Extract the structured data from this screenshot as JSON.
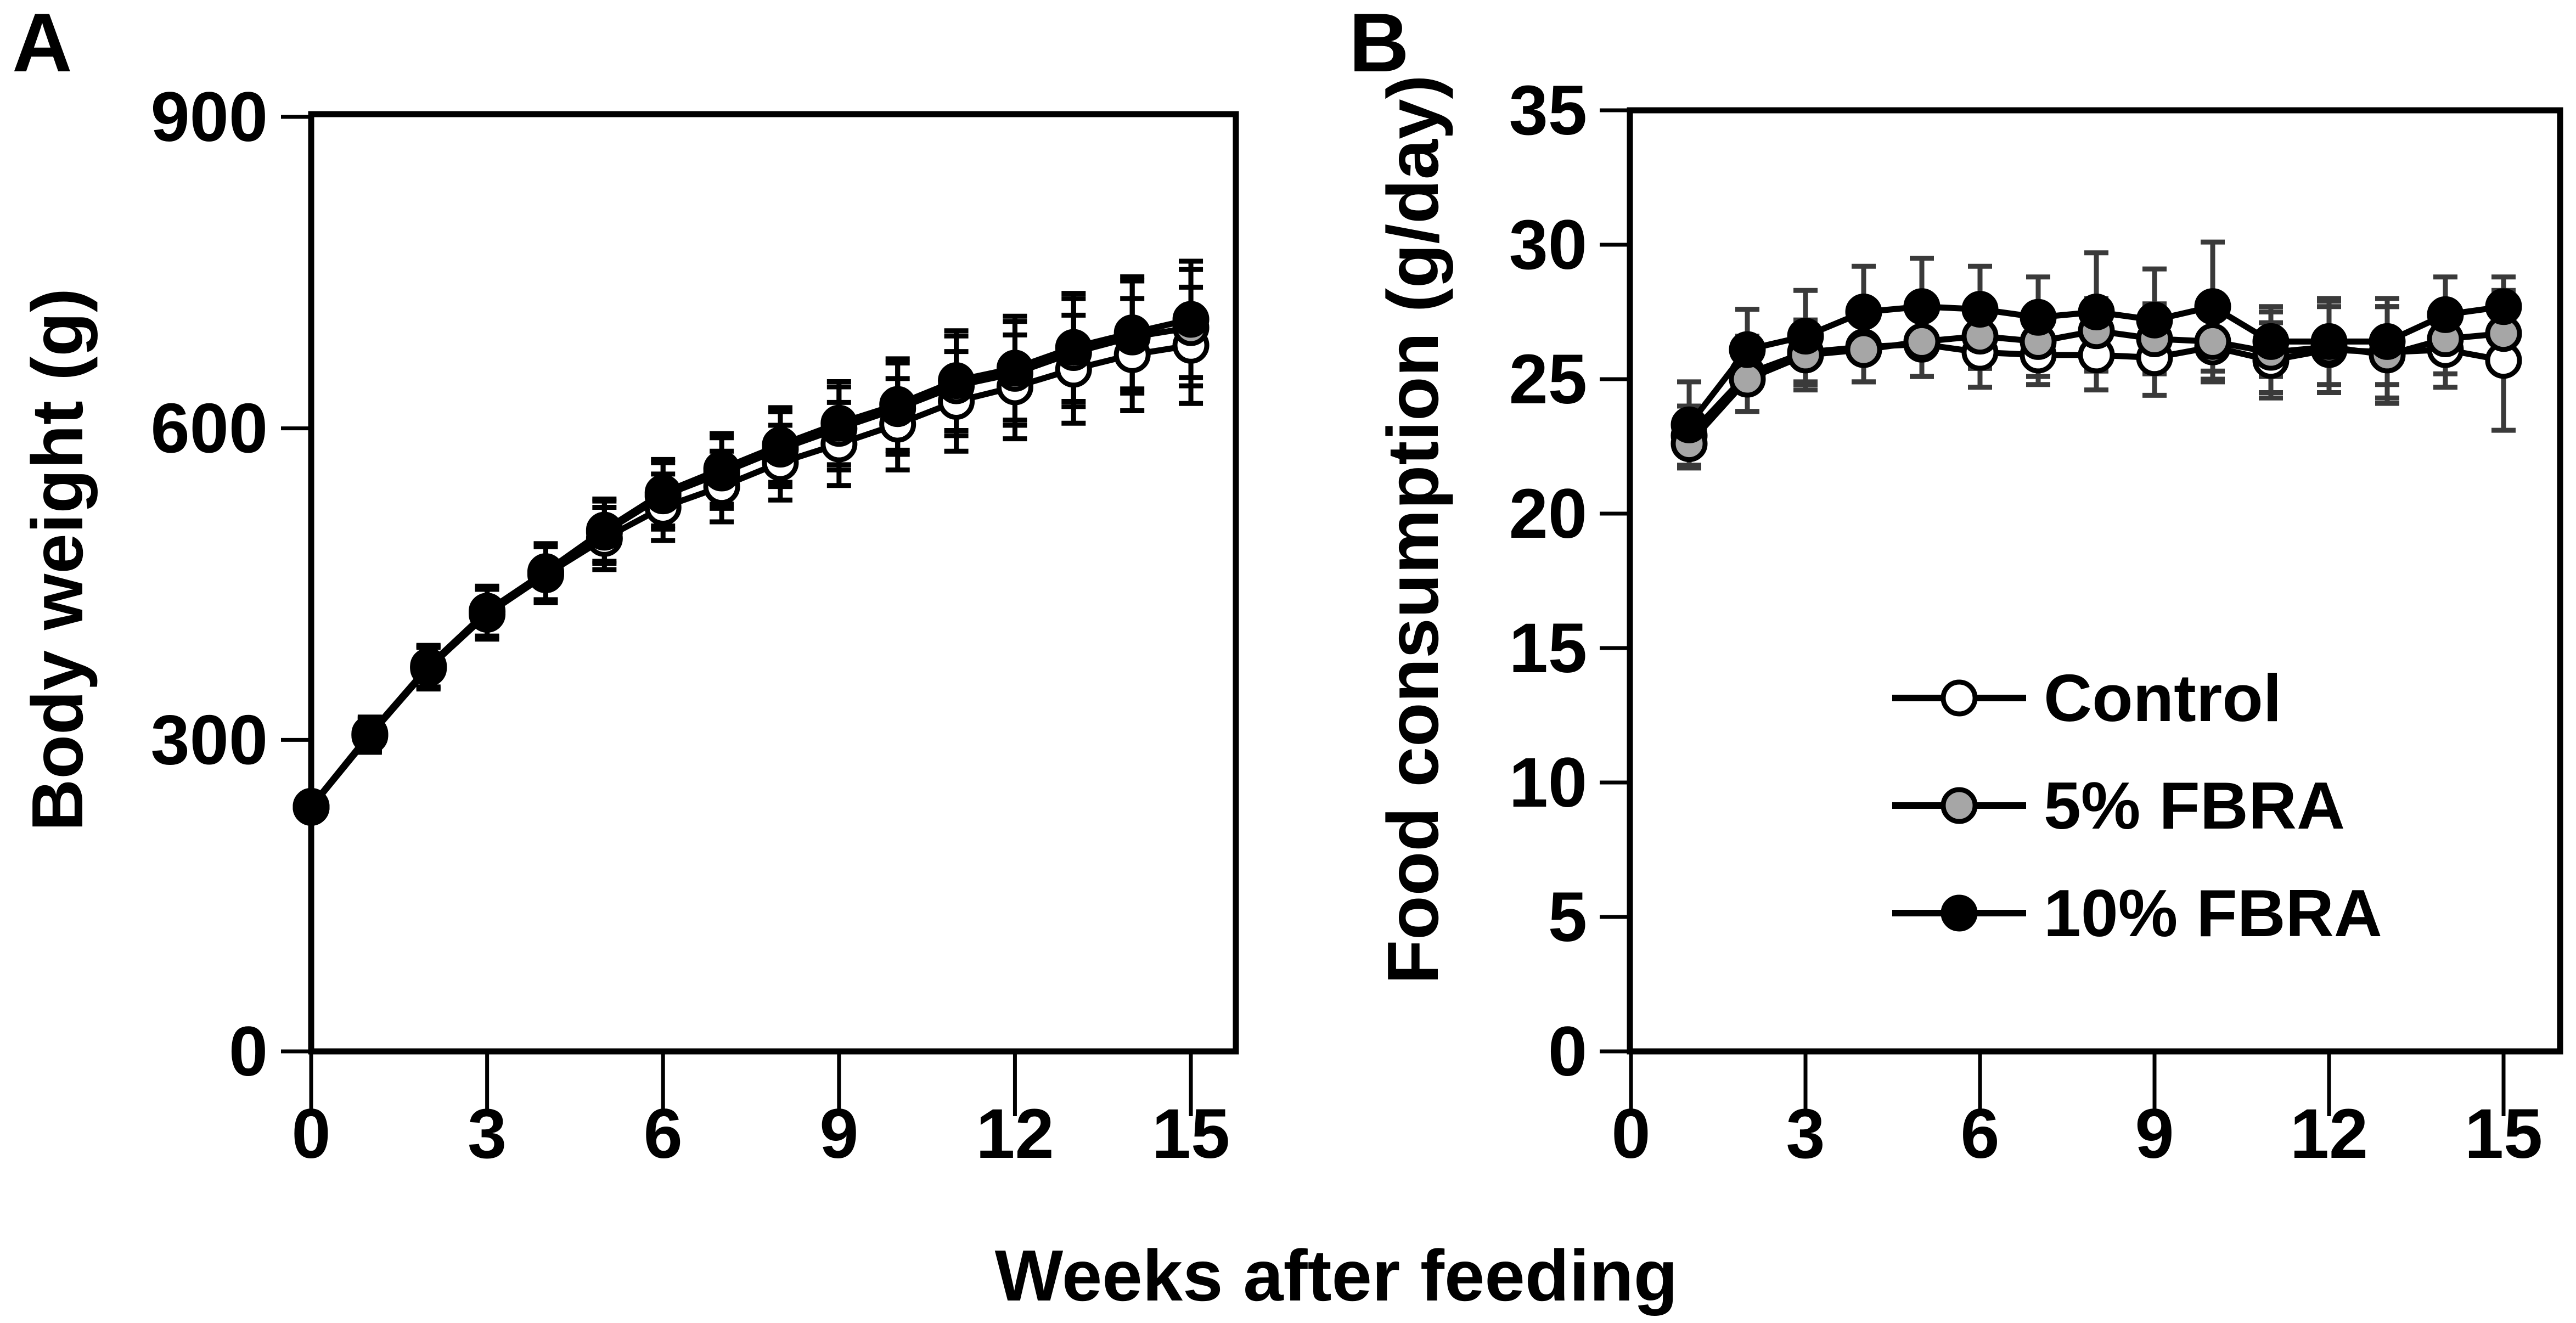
{
  "figure": {
    "panel_a_letter": "A",
    "panel_b_letter": "B",
    "x_axis_label": "Weeks after feeding"
  },
  "colors": {
    "axis": "#000000",
    "line": "#000000",
    "error_bar_a": "#000000",
    "error_bar_b": "#3a3a3a",
    "marker_control_fill": "#ffffff",
    "marker_fbra5_fill": "#a6a6a6",
    "marker_fbra10_fill": "#000000",
    "background": "#ffffff"
  },
  "chart_data": [
    {
      "type": "line",
      "panel": "A",
      "title": "",
      "ylabel": "Body weight (g)",
      "xlabel": "Weeks after feeding",
      "ylim": [
        0,
        900
      ],
      "xlim": [
        0,
        15.8
      ],
      "yticks": [
        0,
        300,
        600,
        900
      ],
      "xticks": [
        0,
        3,
        6,
        9,
        12,
        15
      ],
      "grid": false,
      "legend_position": "none",
      "x": [
        0,
        1,
        2,
        3,
        4,
        5,
        6,
        7,
        8,
        9,
        10,
        11,
        12,
        13,
        14,
        15
      ],
      "series": [
        {
          "name": "Control",
          "marker": "open-circle",
          "fill": "#ffffff",
          "values": [
            235,
            304,
            369,
            421,
            459,
            494,
            524,
            544,
            567,
            585,
            604,
            626,
            640,
            657,
            671,
            680
          ],
          "errors": [
            10,
            16,
            20,
            24,
            27,
            30,
            32,
            34,
            36,
            40,
            44,
            48,
            50,
            52,
            54,
            56
          ]
        },
        {
          "name": "5% FBRA",
          "marker": "gray-circle",
          "fill": "#a6a6a6",
          "values": [
            235,
            305,
            370,
            423,
            461,
            500,
            535,
            557,
            580,
            600,
            619,
            641,
            653,
            673,
            688,
            697
          ],
          "errors": [
            10,
            16,
            20,
            24,
            27,
            30,
            32,
            34,
            36,
            40,
            44,
            48,
            50,
            52,
            54,
            56
          ]
        },
        {
          "name": "10% FBRA",
          "marker": "black-circle",
          "fill": "#000000",
          "values": [
            236,
            306,
            371,
            424,
            462,
            502,
            538,
            561,
            584,
            605,
            623,
            646,
            658,
            678,
            692,
            705
          ],
          "errors": [
            10,
            16,
            20,
            24,
            27,
            30,
            32,
            34,
            36,
            40,
            44,
            48,
            50,
            52,
            54,
            56
          ]
        }
      ]
    },
    {
      "type": "line",
      "panel": "B",
      "title": "",
      "ylabel": "Food consumption (g/day)",
      "xlabel": "Weeks after feeding",
      "ylim": [
        0,
        35
      ],
      "xlim": [
        0,
        16
      ],
      "yticks": [
        0,
        5,
        10,
        15,
        20,
        25,
        30,
        35
      ],
      "xticks": [
        0,
        3,
        6,
        9,
        12,
        15
      ],
      "grid": false,
      "legend_position": "inside-right",
      "x": [
        1,
        2,
        3,
        4,
        5,
        6,
        7,
        8,
        9,
        10,
        11,
        12,
        13,
        14,
        15
      ],
      "series": [
        {
          "name": "Control",
          "marker": "open-circle",
          "fill": "#ffffff",
          "values": [
            22.9,
            25.2,
            26.0,
            26.2,
            26.3,
            26.0,
            25.9,
            25.9,
            25.8,
            26.2,
            25.7,
            26.1,
            26.0,
            26.1,
            25.7
          ],
          "errors": [
            1.1,
            1.4,
            1.2,
            1.3,
            1.2,
            1.3,
            1.1,
            1.3,
            1.4,
            1.3,
            1.4,
            1.6,
            1.7,
            1.4,
            2.6
          ]
        },
        {
          "name": "5% FBRA",
          "marker": "gray-circle",
          "fill": "#a6a6a6",
          "values": [
            22.6,
            25.0,
            25.9,
            26.1,
            26.4,
            26.6,
            26.4,
            26.8,
            26.5,
            26.4,
            26.0,
            26.2,
            25.9,
            26.5,
            26.7
          ],
          "errors": [
            0.9,
            1.2,
            1.3,
            1.2,
            1.3,
            1.2,
            1.3,
            1.2,
            1.3,
            1.4,
            1.5,
            1.7,
            1.8,
            1.3,
            1.2
          ]
        },
        {
          "name": "10% FBRA",
          "marker": "black-circle",
          "fill": "#000000",
          "values": [
            23.3,
            26.1,
            26.6,
            27.5,
            27.7,
            27.6,
            27.3,
            27.5,
            27.2,
            27.7,
            26.4,
            26.4,
            26.4,
            27.4,
            27.7
          ],
          "errors": [
            1.6,
            1.5,
            1.7,
            1.7,
            1.8,
            1.6,
            1.5,
            2.2,
            1.9,
            2.4,
            1.3,
            1.6,
            1.6,
            1.4,
            1.1
          ]
        }
      ]
    }
  ]
}
